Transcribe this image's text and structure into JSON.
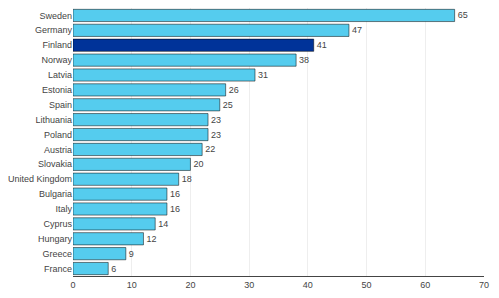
{
  "chart_data": {
    "type": "bar",
    "orientation": "horizontal",
    "categories": [
      "Sweden",
      "Germany",
      "Finland",
      "Norway",
      "Latvia",
      "Estonia",
      "Spain",
      "Lithuania",
      "Poland",
      "Austria",
      "Slovakia",
      "United Kingdom",
      "Bulgaria",
      "Italy",
      "Cyprus",
      "Hungary",
      "Greece",
      "France"
    ],
    "values": [
      65,
      47,
      41,
      38,
      31,
      26,
      25,
      23,
      23,
      22,
      20,
      18,
      16,
      16,
      14,
      12,
      9,
      6
    ],
    "colors": [
      "#55ccee",
      "#55ccee",
      "#003399",
      "#55ccee",
      "#55ccee",
      "#55ccee",
      "#55ccee",
      "#55ccee",
      "#55ccee",
      "#55ccee",
      "#55ccee",
      "#55ccee",
      "#55ccee",
      "#55ccee",
      "#55ccee",
      "#55ccee",
      "#55ccee",
      "#55ccee"
    ],
    "xlim": [
      0,
      70
    ],
    "xticks": [
      0,
      10,
      20,
      30,
      40,
      50,
      60,
      70
    ],
    "grid": true,
    "data_labels": true
  }
}
